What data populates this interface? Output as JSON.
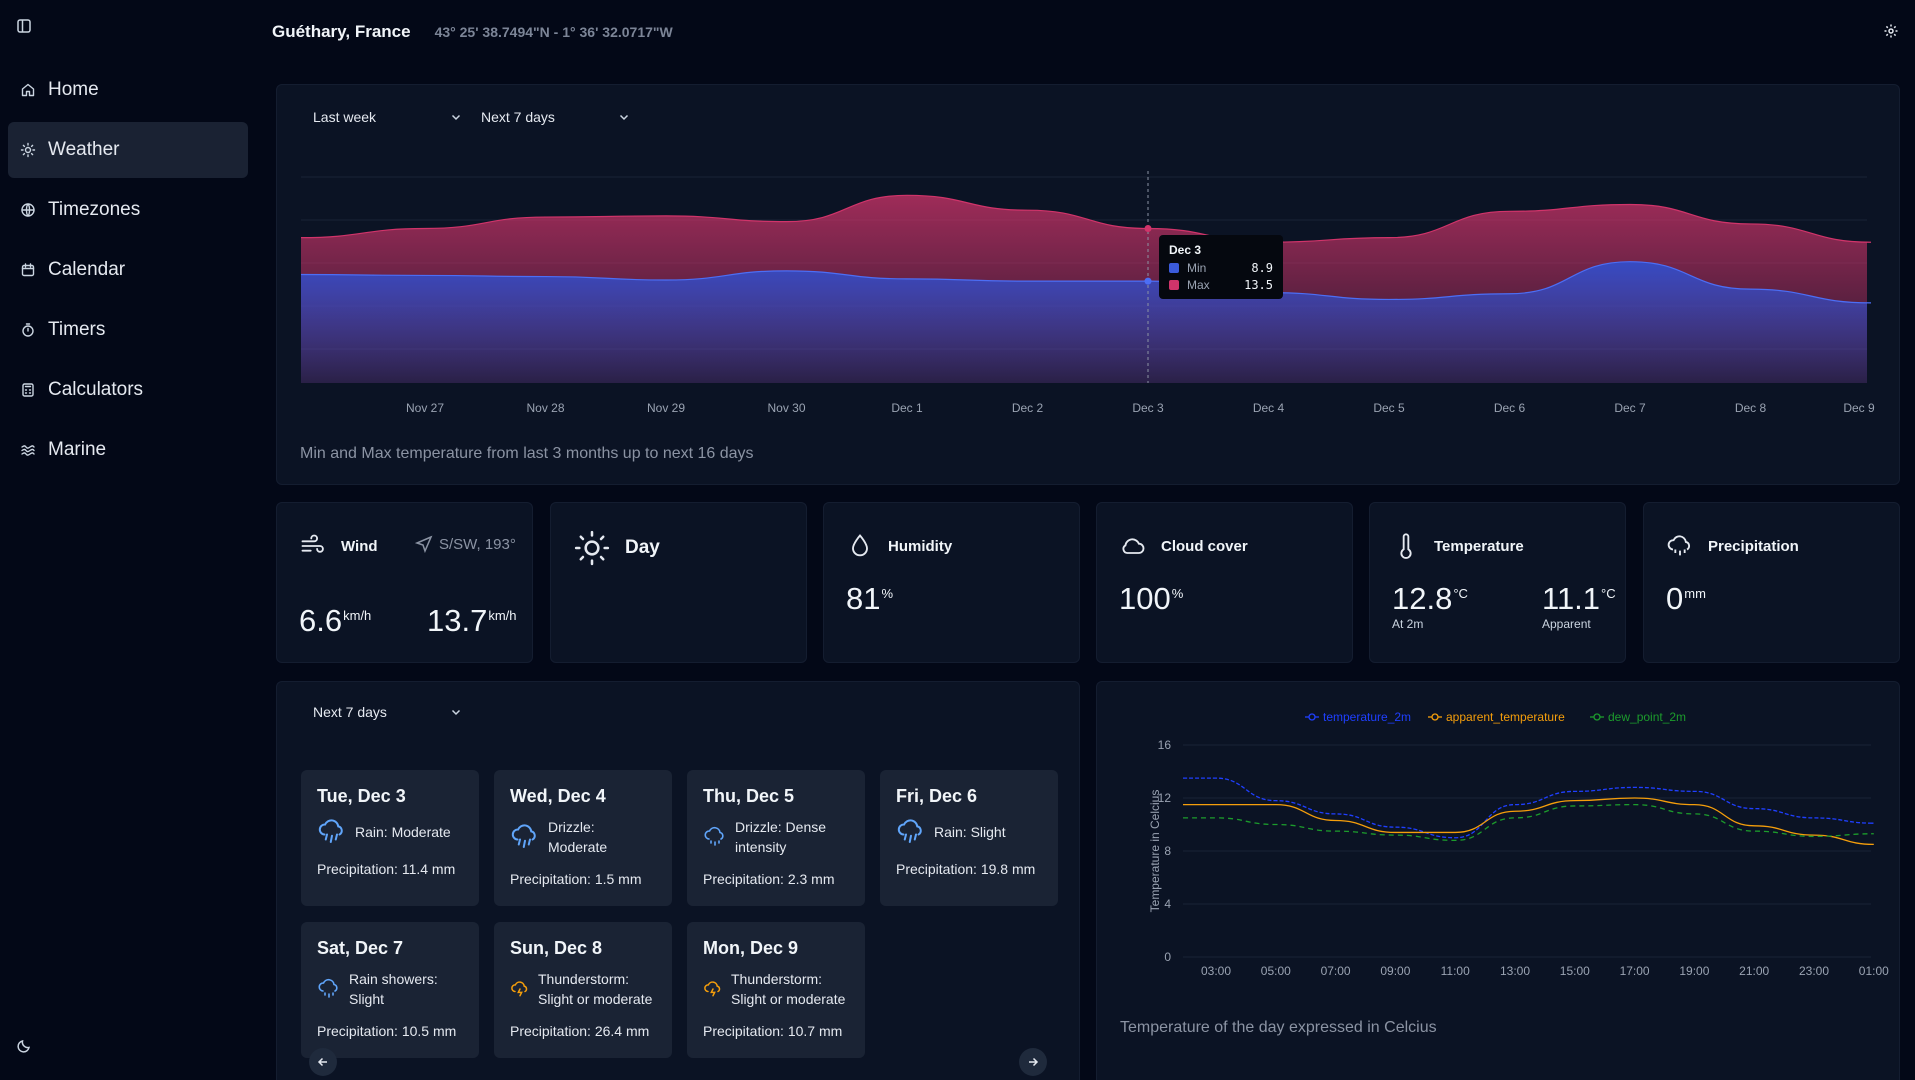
{
  "location": {
    "name": "Guéthary, France",
    "coords": "43° 25' 38.7494\"N - 1° 36' 32.0717\"W"
  },
  "nav": [
    {
      "label": "Home",
      "icon": "home-icon"
    },
    {
      "label": "Weather",
      "icon": "sun-icon",
      "active": true
    },
    {
      "label": "Timezones",
      "icon": "globe-icon"
    },
    {
      "label": "Calendar",
      "icon": "calendar-icon"
    },
    {
      "label": "Timers",
      "icon": "timer-icon"
    },
    {
      "label": "Calculators",
      "icon": "calculator-icon"
    },
    {
      "label": "Marine",
      "icon": "waves-icon"
    }
  ],
  "range_chart": {
    "from_select": "Last week",
    "to_select": "Next 7 days",
    "caption": "Min and Max temperature from last 3 months up to next 16 days",
    "tooltip": {
      "date": "Dec 3",
      "min_label": "Min",
      "min_value": "8.9",
      "max_label": "Max",
      "max_value": "13.5"
    }
  },
  "stats": {
    "wind": {
      "title": "Wind",
      "direction": "S/SW, 193°",
      "speed": "6.6",
      "gusts": "13.7",
      "unit": "km/h"
    },
    "daylight": {
      "title": "Day"
    },
    "humidity": {
      "title": "Humidity",
      "value": "81",
      "unit": "%"
    },
    "cloud": {
      "title": "Cloud cover",
      "value": "100",
      "unit": "%"
    },
    "temperature": {
      "title": "Temperature",
      "value": "12.8",
      "unit": "°C",
      "label": "At 2m",
      "apparent": "11.1",
      "apparent_label": "Apparent"
    },
    "precip": {
      "title": "Precipitation",
      "value": "0",
      "unit": "mm"
    }
  },
  "forecast": {
    "select": "Next 7 days",
    "days": [
      {
        "date": "Tue, Dec 3",
        "cond": "Rain: Moderate",
        "precip": "Precipitation: 11.4 mm",
        "icon": "rain-icon"
      },
      {
        "date": "Wed, Dec 4",
        "cond": "Drizzle: Moderate",
        "precip": "Precipitation: 1.5 mm",
        "icon": "rain-icon"
      },
      {
        "date": "Thu, Dec 5",
        "cond": "Drizzle: Dense intensity",
        "precip": "Precipitation: 2.3 mm",
        "icon": "drizzle-icon"
      },
      {
        "date": "Fri, Dec 6",
        "cond": "Rain: Slight",
        "precip": "Precipitation: 19.8 mm",
        "icon": "rain-icon"
      },
      {
        "date": "Sat, Dec 7",
        "cond": "Rain showers: Slight",
        "precip": "Precipitation: 10.5 mm",
        "icon": "drizzle-icon"
      },
      {
        "date": "Sun, Dec 8",
        "cond": "Thunderstorm: Slight or moderate",
        "precip": "Precipitation: 26.4 mm",
        "icon": "thunderstorm-icon"
      },
      {
        "date": "Mon, Dec 9",
        "cond": "Thunderstorm: Slight or moderate",
        "precip": "Precipitation: 10.7 mm",
        "icon": "thunderstorm-icon"
      }
    ]
  },
  "day_chart": {
    "caption": "Temperature of the day expressed in Celcius"
  },
  "colors": {
    "max": "#d0346a",
    "min": "#2f4fd0",
    "temp": "#1f3fff",
    "apparent": "#f59e0b",
    "dew": "#1c9c2c"
  },
  "chart_data": [
    {
      "type": "area",
      "categories": [
        "Nov 27",
        "Nov 28",
        "Nov 29",
        "Nov 30",
        "Dec 1",
        "Dec 2",
        "Dec 3",
        "Dec 4",
        "Dec 5",
        "Dec 6",
        "Dec 7",
        "Dec 8",
        "Dec 9"
      ],
      "series": [
        {
          "name": "Min",
          "values": [
            9.4,
            9.3,
            9.0,
            9.8,
            9.1,
            8.9,
            8.9,
            7.9,
            7.3,
            7.8,
            10.6,
            8.2,
            7.0
          ]
        },
        {
          "name": "Max",
          "values": [
            13.5,
            14.5,
            14.6,
            14.1,
            16.4,
            15.1,
            13.5,
            12.3,
            12.7,
            15.0,
            15.6,
            13.9,
            12.3
          ]
        }
      ],
      "ylim": [
        0,
        18
      ],
      "tooltip_category": "Dec 3"
    },
    {
      "type": "line",
      "x": [
        "03:00",
        "05:00",
        "07:00",
        "09:00",
        "11:00",
        "13:00",
        "15:00",
        "17:00",
        "19:00",
        "21:00",
        "23:00",
        "01:00"
      ],
      "series": [
        {
          "name": "temperature_2m",
          "values": [
            13.5,
            11.8,
            10.8,
            9.8,
            9.0,
            11.5,
            12.5,
            12.8,
            12.5,
            11.2,
            10.5,
            10.1
          ]
        },
        {
          "name": "apparent_temperature",
          "values": [
            11.5,
            11.5,
            10.3,
            9.4,
            9.4,
            11.0,
            11.8,
            12.0,
            11.5,
            9.9,
            9.2,
            8.5
          ]
        },
        {
          "name": "dew_point_2m",
          "values": [
            10.5,
            10.0,
            9.5,
            9.2,
            8.8,
            10.5,
            11.4,
            11.5,
            10.8,
            9.5,
            9.1,
            9.3
          ]
        }
      ],
      "ylabel": "Temperature in Celcius",
      "ylim": [
        0,
        16
      ],
      "yticks": [
        0,
        4,
        8,
        12,
        16
      ],
      "legend": "top"
    }
  ]
}
